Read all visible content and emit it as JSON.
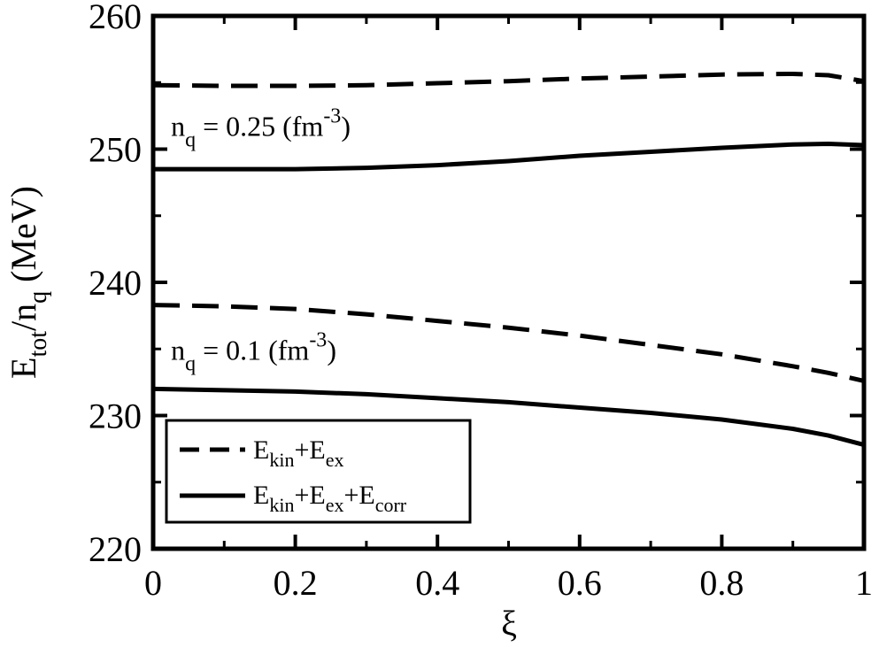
{
  "chart_data": {
    "type": "line",
    "xlabel": "ξ",
    "ylabel": {
      "base": "E",
      "sub1": "tot",
      "mid": "/n",
      "sub2": "q",
      "tail": " (MeV)"
    },
    "xlim": [
      0,
      1
    ],
    "ylim": [
      220,
      260
    ],
    "x_ticks": [
      0,
      0.2,
      0.4,
      0.6,
      0.8,
      1
    ],
    "x_tick_labels": [
      "0",
      "0.2",
      "0.4",
      "0.6",
      "0.8",
      "1"
    ],
    "y_ticks": [
      220,
      230,
      240,
      250,
      260
    ],
    "y_tick_labels": [
      "220",
      "230",
      "240",
      "250",
      "260"
    ],
    "grid": false,
    "legend_position": "bottom-left",
    "legend": [
      {
        "style": "dashed",
        "parts": [
          "E",
          "kin",
          "+E",
          "ex"
        ]
      },
      {
        "style": "solid",
        "parts": [
          "E",
          "kin",
          "+E",
          "ex",
          "+E",
          "corr"
        ]
      }
    ],
    "annotations": [
      {
        "pre": "n",
        "sub": "q",
        "mid": " = 0.25 (fm",
        "sup": "-3",
        "post": ")",
        "anchor_x": 0.025,
        "anchor_y": 251.0
      },
      {
        "pre": "n",
        "sub": "q",
        "mid": " = 0.1 (fm",
        "sup": "-3",
        "post": ")",
        "anchor_x": 0.025,
        "anchor_y": 234.2
      }
    ],
    "series": [
      {
        "style": "dashed",
        "group": "0.25",
        "x": [
          0,
          0.1,
          0.2,
          0.3,
          0.4,
          0.5,
          0.6,
          0.7,
          0.8,
          0.9,
          0.95,
          1.0
        ],
        "y": [
          254.8,
          254.75,
          254.75,
          254.8,
          254.95,
          255.1,
          255.3,
          255.45,
          255.6,
          255.65,
          255.55,
          255.1
        ]
      },
      {
        "style": "solid",
        "group": "0.25",
        "x": [
          0,
          0.1,
          0.2,
          0.3,
          0.4,
          0.5,
          0.6,
          0.7,
          0.8,
          0.9,
          0.95,
          1.0
        ],
        "y": [
          248.5,
          248.5,
          248.5,
          248.6,
          248.8,
          249.1,
          249.5,
          249.8,
          250.1,
          250.35,
          250.4,
          250.3
        ]
      },
      {
        "style": "dashed",
        "group": "0.1",
        "x": [
          0,
          0.1,
          0.2,
          0.3,
          0.4,
          0.5,
          0.6,
          0.7,
          0.8,
          0.9,
          0.95,
          1.0
        ],
        "y": [
          238.3,
          238.2,
          238.0,
          237.6,
          237.1,
          236.6,
          236.0,
          235.3,
          234.6,
          233.7,
          233.2,
          232.6
        ]
      },
      {
        "style": "solid",
        "group": "0.1",
        "x": [
          0,
          0.1,
          0.2,
          0.3,
          0.4,
          0.5,
          0.6,
          0.7,
          0.8,
          0.9,
          0.95,
          1.0
        ],
        "y": [
          232.0,
          231.9,
          231.8,
          231.6,
          231.3,
          231.0,
          230.6,
          230.2,
          229.7,
          229.0,
          228.5,
          227.8
        ]
      }
    ]
  }
}
